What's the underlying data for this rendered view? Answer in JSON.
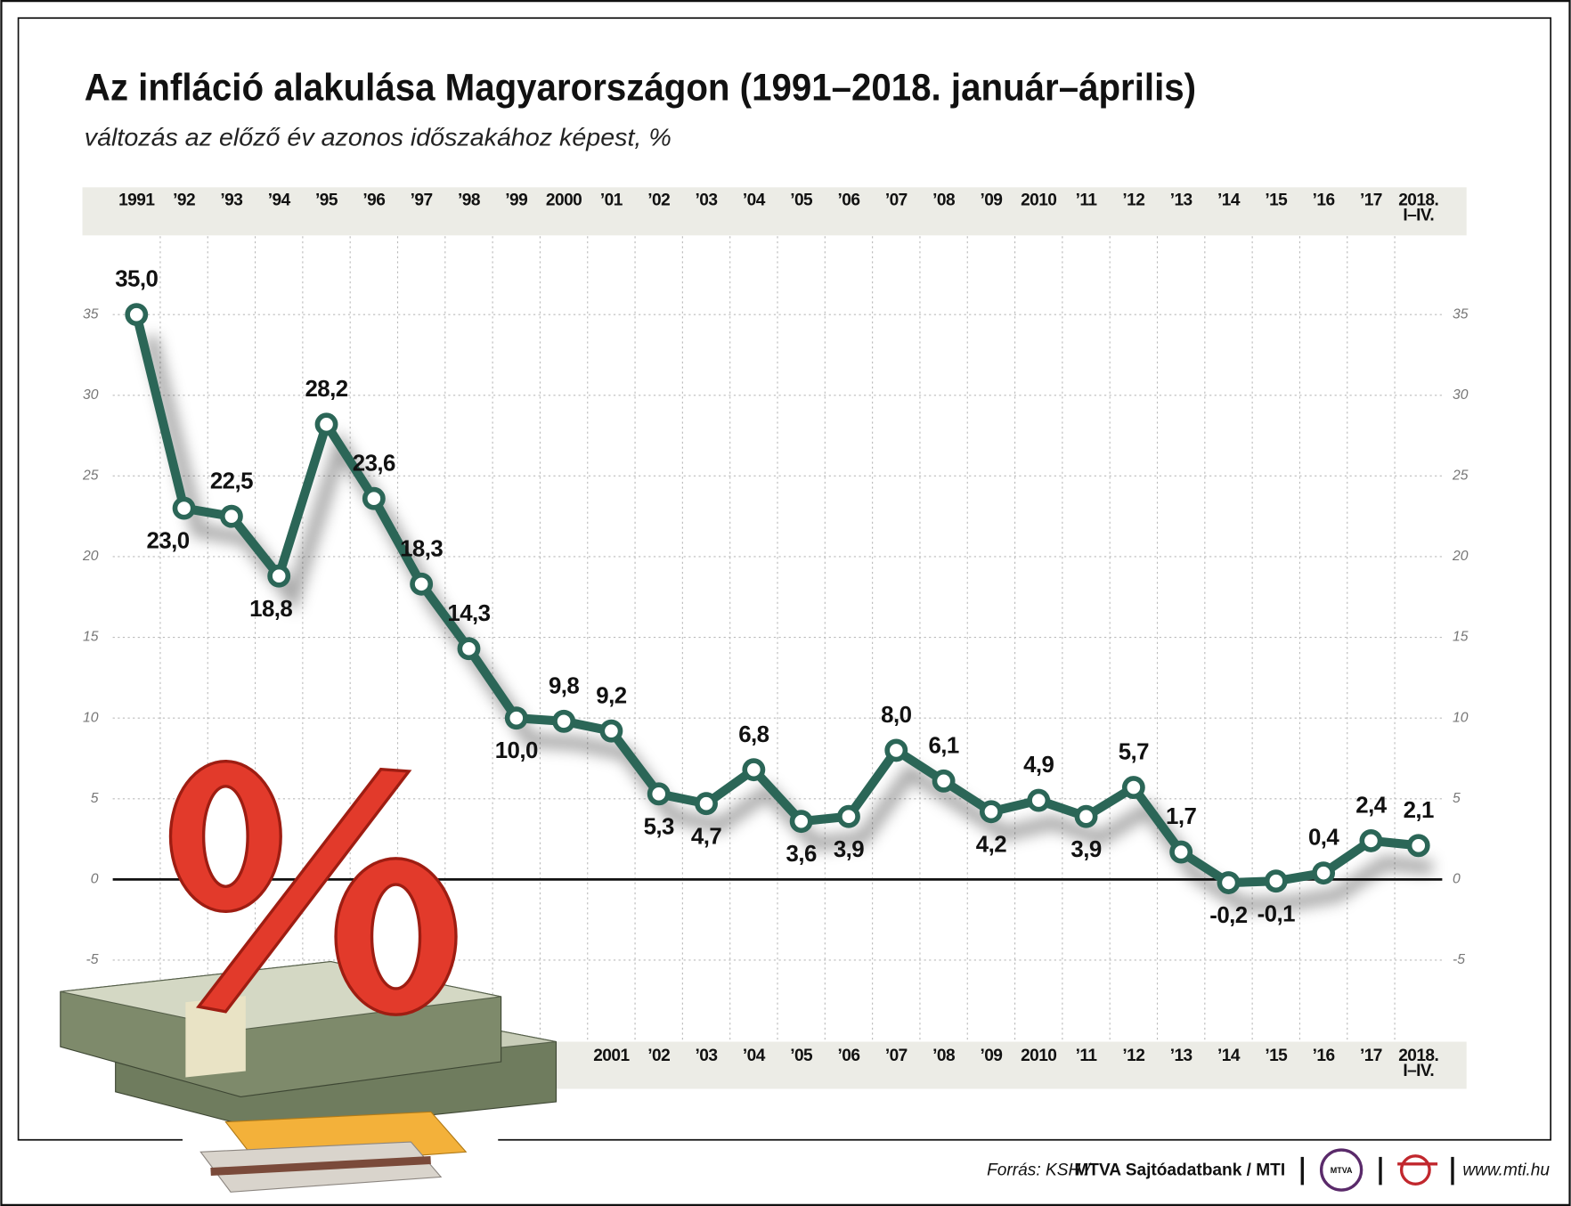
{
  "chart_data": {
    "type": "line",
    "title": "Az infláció alakulása Magyarországon (1991–2018. január–április)",
    "subtitle": "változás az előző év azonos időszakához képest, %",
    "categories": [
      "1991",
      "’92",
      "’93",
      "’94",
      "’95",
      "’96",
      "’97",
      "’98",
      "’99",
      "2000",
      "’01",
      "’02",
      "’03",
      "’04",
      "’05",
      "’06",
      "’07",
      "’08",
      "’09",
      "2010",
      "’11",
      "’12",
      "’13",
      "’14",
      "’15",
      "’16",
      "’17",
      "2018.\nI–IV."
    ],
    "bottom_categories": [
      "2001",
      "’02",
      "’03",
      "’04",
      "’05",
      "’06",
      "’07",
      "’08",
      "’09",
      "2010",
      "’11",
      "’12",
      "’13",
      "’14",
      "’15",
      "’16",
      "’17",
      "2018.\nI–IV."
    ],
    "values": [
      35.0,
      23.0,
      22.5,
      18.8,
      28.2,
      23.6,
      18.3,
      14.3,
      10.0,
      9.8,
      9.2,
      5.3,
      4.7,
      6.8,
      3.6,
      3.9,
      8.0,
      6.1,
      4.2,
      4.9,
      3.9,
      5.7,
      1.7,
      -0.2,
      -0.1,
      0.4,
      2.4,
      2.1
    ],
    "value_labels": [
      "35,0",
      "23,0",
      "22,5",
      "18,8",
      "28,2",
      "23,6",
      "18,3",
      "14,3",
      "10,0",
      "9,8",
      "9,2",
      "5,3",
      "4,7",
      "6,8",
      "3,6",
      "3,9",
      "8,0",
      "6,1",
      "4,2",
      "4,9",
      "3,9",
      "5,7",
      "1,7",
      "-0,2",
      "-0,1",
      "0,4",
      "2,4",
      "2,1"
    ],
    "color": "#2b6657",
    "ylim": [
      -9.7,
      39.6
    ],
    "yticks": [
      -5,
      0,
      5,
      10,
      15,
      20,
      25,
      30,
      35
    ],
    "grid": true,
    "source_prefix": "Forrás: KSH /",
    "source": "MTVA Sajtóadatbank / MTI",
    "logo": "MTVA",
    "website": "www.mti.hu"
  }
}
